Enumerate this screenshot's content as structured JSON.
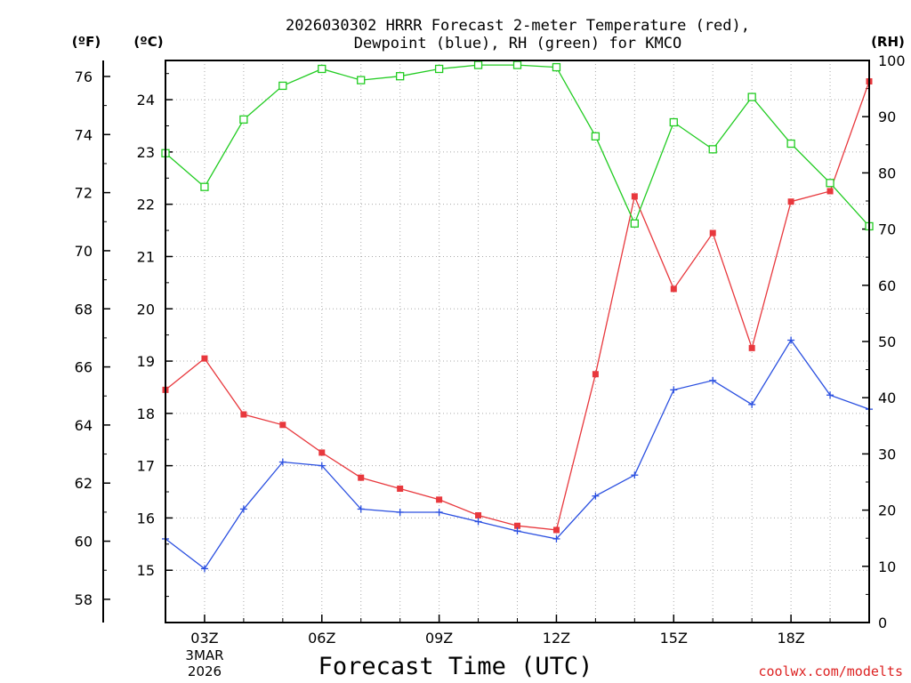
{
  "chart_data": {
    "type": "line",
    "title_line1": "2026030302 HRRR Forecast 2-meter Temperature (red),",
    "title_line2": "Dewpoint (blue), RH (green) for KMCO",
    "left_axis_f_label": "(ºF)",
    "left_axis_c_label": "(ºC)",
    "right_axis_label": "(RH)",
    "xlabel": "Forecast Time (UTC)",
    "credit": "coolwx.com/modelts",
    "date_label_line1": "3MAR",
    "date_label_line2": "2026",
    "x_hours": [
      2,
      3,
      4,
      5,
      6,
      7,
      8,
      9,
      10,
      11,
      12,
      13,
      14,
      15,
      16,
      17,
      18,
      19,
      20
    ],
    "xlim": [
      2,
      20
    ],
    "x_ticks": [
      {
        "hour": 3,
        "label": "03Z"
      },
      {
        "hour": 6,
        "label": "06Z"
      },
      {
        "hour": 9,
        "label": "09Z"
      },
      {
        "hour": 12,
        "label": "12Z"
      },
      {
        "hour": 15,
        "label": "15Z"
      },
      {
        "hour": 18,
        "label": "18Z"
      }
    ],
    "c_ylim": [
      14.0,
      24.75
    ],
    "c_ticks": [
      "15",
      "16",
      "17",
      "18",
      "19",
      "20",
      "21",
      "22",
      "23",
      "24"
    ],
    "f_ticks": [
      "58",
      "60",
      "62",
      "64",
      "66",
      "68",
      "70",
      "72",
      "74",
      "76"
    ],
    "rh_ylim": [
      0,
      100
    ],
    "rh_ticks": [
      "0",
      "10",
      "20",
      "30",
      "40",
      "50",
      "60",
      "70",
      "80",
      "90",
      "100"
    ],
    "grid": true,
    "series": [
      {
        "name": "Temperature",
        "units": "C",
        "axis": "celsius",
        "color": "#e8383d",
        "marker": "filled-square",
        "values": [
          18.45,
          19.05,
          17.98,
          17.78,
          17.25,
          16.77,
          16.56,
          16.35,
          16.05,
          15.85,
          15.77,
          18.75,
          22.15,
          20.38,
          21.45,
          19.25,
          22.05,
          22.25,
          24.35
        ]
      },
      {
        "name": "Dewpoint",
        "units": "C",
        "axis": "celsius",
        "color": "#2a4fe0",
        "marker": "plus",
        "values": [
          15.6,
          15.03,
          16.17,
          17.07,
          17.0,
          16.17,
          16.11,
          16.11,
          15.93,
          15.75,
          15.6,
          16.42,
          16.82,
          18.45,
          18.63,
          18.17,
          19.4,
          18.35,
          18.08
        ]
      },
      {
        "name": "RH",
        "units": "%",
        "axis": "rh",
        "color": "#22cc22",
        "marker": "open-square",
        "values": [
          83.5,
          77.5,
          89.5,
          95.5,
          98.5,
          96.5,
          97.2,
          98.5,
          99.2,
          99.2,
          98.8,
          86.5,
          71.0,
          89.0,
          84.2,
          93.5,
          85.2,
          78.2,
          70.5
        ]
      }
    ]
  }
}
